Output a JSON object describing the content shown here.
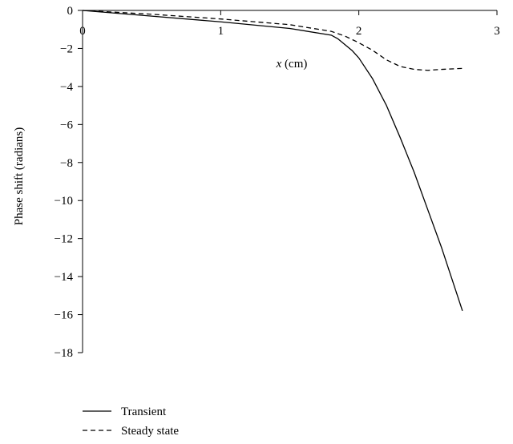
{
  "chart_data": {
    "type": "line",
    "xlabel_var": "x",
    "xlabel_unit": " (cm)",
    "ylabel": "Phase shift (radians)",
    "xlim": [
      0,
      3
    ],
    "ylim": [
      -18,
      0
    ],
    "xticks": [
      0,
      1,
      2,
      3
    ],
    "yticks": [
      0,
      -2,
      -4,
      -6,
      -8,
      -10,
      -12,
      -14,
      -16,
      -18
    ],
    "xtick_labels": [
      "0",
      "1",
      "2",
      "3"
    ],
    "ytick_labels": [
      "0",
      "−2",
      "−4",
      "−6",
      "−8",
      "−10",
      "−12",
      "−14",
      "−16",
      "−18"
    ],
    "grid": false,
    "legend_position": "bottom-left",
    "series": [
      {
        "name": "Transient",
        "style": "solid",
        "color": "#000000",
        "x": [
          0,
          0.5,
          1.0,
          1.5,
          1.8,
          1.85,
          1.9,
          1.95,
          2.0,
          2.1,
          2.2,
          2.3,
          2.4,
          2.5,
          2.6,
          2.7,
          2.75
        ],
        "y": [
          0,
          -0.3,
          -0.6,
          -0.95,
          -1.3,
          -1.5,
          -1.8,
          -2.1,
          -2.5,
          -3.6,
          -5.0,
          -6.7,
          -8.5,
          -10.5,
          -12.5,
          -14.7,
          -15.8
        ]
      },
      {
        "name": "Steady state",
        "style": "dashed",
        "color": "#000000",
        "x": [
          0,
          0.5,
          1.0,
          1.5,
          1.8,
          1.9,
          2.0,
          2.1,
          2.2,
          2.3,
          2.4,
          2.5,
          2.6,
          2.75
        ],
        "y": [
          0,
          -0.2,
          -0.45,
          -0.75,
          -1.1,
          -1.35,
          -1.7,
          -2.1,
          -2.6,
          -2.95,
          -3.1,
          -3.15,
          -3.1,
          -3.05
        ]
      }
    ]
  }
}
